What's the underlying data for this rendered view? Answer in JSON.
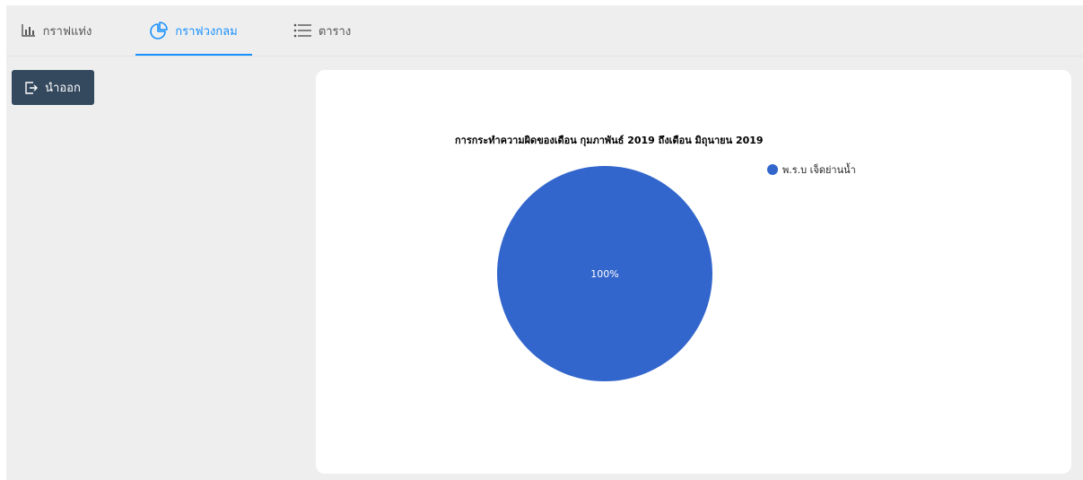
{
  "tabs": [
    {
      "label": "กราฟแท่ง",
      "icon": "bar-chart-icon",
      "active": false
    },
    {
      "label": "กราฟวงกลม",
      "icon": "pie-chart-icon",
      "active": true
    },
    {
      "label": "ตาราง",
      "icon": "list-icon",
      "active": false
    }
  ],
  "toolbar": {
    "export_label": "นำออก",
    "export_icon": "export-icon"
  },
  "colors": {
    "accent": "#1890ff",
    "button": "#34495e",
    "slice": "#3366cc"
  },
  "chart_data": {
    "type": "pie",
    "title": "การกระทำความผิดของเดือน กุมภาพันธ์ 2019 ถึงเดือน มิถุนายน 2019",
    "categories": [
      "พ.ร.บ เจ็ดย่านน้ำ"
    ],
    "values": [
      100
    ],
    "data_labels": [
      "100%"
    ],
    "colors": [
      "#3366cc"
    ],
    "legend": "right"
  }
}
